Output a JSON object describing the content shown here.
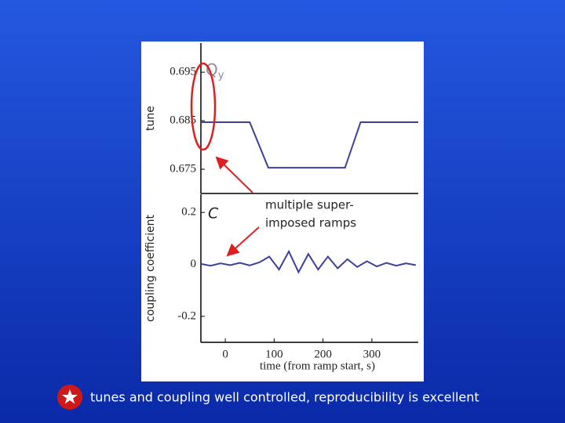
{
  "chart_data": [
    {
      "type": "line",
      "ylabel": "tune",
      "annotation": "Q",
      "annotation_sub": "y",
      "xlim": [
        -50,
        395
      ],
      "ylim": [
        0.67,
        0.701
      ],
      "yticks": [
        0.675,
        0.685,
        0.695
      ],
      "series": [
        {
          "color": "#3a3fa0",
          "x": [
            -50,
            50,
            88,
            245,
            277,
            395
          ],
          "values": [
            0.6847,
            0.6847,
            0.6753,
            0.6753,
            0.6847,
            0.6847
          ]
        }
      ]
    },
    {
      "type": "line",
      "ylabel": "coupling coefficient",
      "annotation": "C",
      "xlabel": "time (from ramp start, s)",
      "xlim": [
        -50,
        395
      ],
      "ylim": [
        -0.3,
        0.27
      ],
      "yticks": [
        0.2,
        0,
        -0.2
      ],
      "xticks": [
        0,
        100,
        200,
        300
      ],
      "series": [
        {
          "color": "#3a3fa0",
          "x": [
            -50,
            -30,
            -10,
            10,
            30,
            50,
            70,
            90,
            110,
            130,
            150,
            170,
            190,
            210,
            230,
            250,
            270,
            290,
            310,
            330,
            350,
            370,
            390
          ],
          "values": [
            0.002,
            -0.005,
            0.004,
            -0.003,
            0.006,
            -0.004,
            0.008,
            0.03,
            -0.02,
            0.05,
            -0.03,
            0.04,
            -0.02,
            0.03,
            -0.015,
            0.02,
            -0.01,
            0.012,
            -0.008,
            0.006,
            -0.005,
            0.004,
            -0.003
          ]
        }
      ]
    }
  ],
  "callout": [
    "multiple super-",
    "imposed ramps"
  ],
  "caption": "tunes and coupling well controlled, reproducibility is excellent"
}
